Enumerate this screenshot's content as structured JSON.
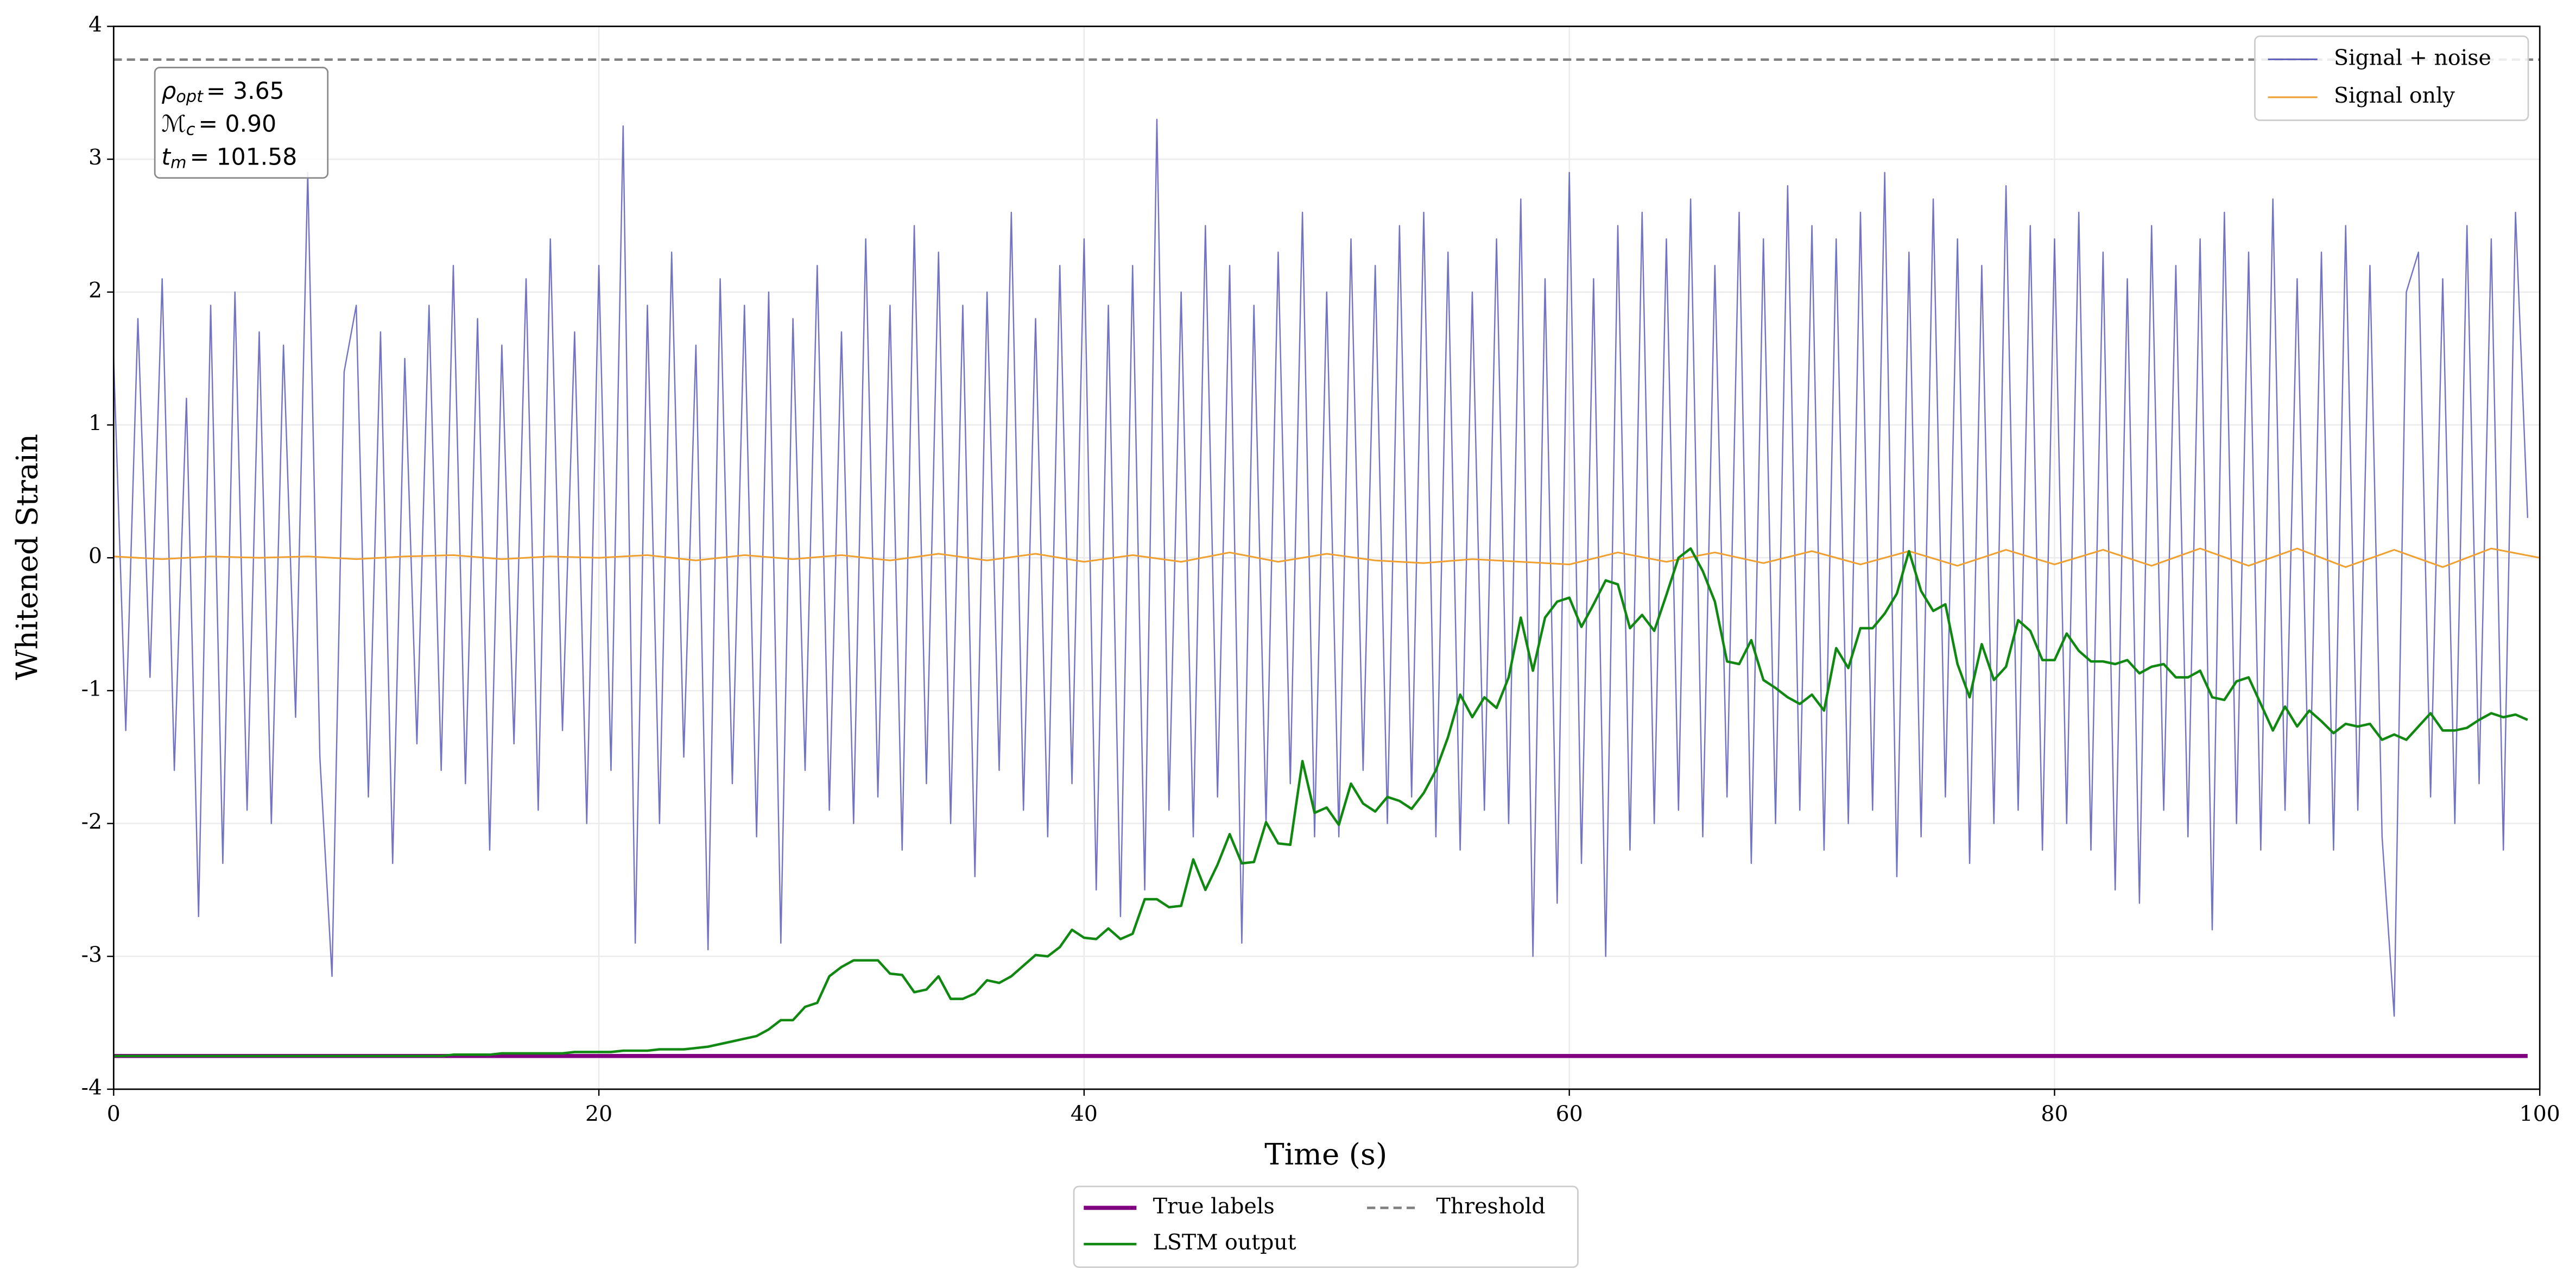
{
  "chart_data": {
    "type": "line",
    "xlabel": "Time (s)",
    "ylabel": "Whitened Strain",
    "xlim": [
      0,
      100
    ],
    "ylim": [
      -4,
      4
    ],
    "xticks": [
      0,
      20,
      40,
      60,
      80,
      100
    ],
    "yticks": [
      -4,
      -3,
      -2,
      -1,
      0,
      1,
      2,
      3,
      4
    ],
    "grid": true,
    "annotations": [
      {
        "symbol": "ρ",
        "sub": "opt",
        "text": "= 3.65"
      },
      {
        "symbol": "ℳ",
        "sub": "c",
        "text": "= 0.90"
      },
      {
        "symbol": "t",
        "sub": "m",
        "text": "= 101.58"
      }
    ],
    "x": [
      0,
      0.5,
      1,
      1.5,
      2,
      2.5,
      3,
      3.5,
      4,
      4.5,
      5,
      5.5,
      6,
      6.5,
      7,
      7.5,
      8,
      8.5,
      9,
      9.5,
      10,
      10.5,
      11,
      11.5,
      12,
      12.5,
      13,
      13.5,
      14,
      14.5,
      15,
      15.5,
      16,
      16.5,
      17,
      17.5,
      18,
      18.5,
      19,
      19.5,
      20,
      20.5,
      21,
      21.5,
      22,
      22.5,
      23,
      23.5,
      24,
      24.5,
      25,
      25.5,
      26,
      26.5,
      27,
      27.5,
      28,
      28.5,
      29,
      29.5,
      30,
      30.5,
      31,
      31.5,
      32,
      32.5,
      33,
      33.5,
      34,
      34.5,
      35,
      35.5,
      36,
      36.5,
      37,
      37.5,
      38,
      38.5,
      39,
      39.5,
      40,
      40.5,
      41,
      41.5,
      42,
      42.5,
      43,
      43.5,
      44,
      44.5,
      45,
      45.5,
      46,
      46.5,
      47,
      47.5,
      48,
      48.5,
      49,
      49.5,
      50,
      50.5,
      51,
      51.5,
      52,
      52.5,
      53,
      53.5,
      54,
      54.5,
      55,
      55.5,
      56,
      56.5,
      57,
      57.5,
      58,
      58.5,
      59,
      59.5,
      60,
      60.5,
      61,
      61.5,
      62,
      62.5,
      63,
      63.5,
      64,
      64.5,
      65,
      65.5,
      66,
      66.5,
      67,
      67.5,
      68,
      68.5,
      69,
      69.5,
      70,
      70.5,
      71,
      71.5,
      72,
      72.5,
      73,
      73.5,
      74,
      74.5,
      75,
      75.5,
      76,
      76.5,
      77,
      77.5,
      78,
      78.5,
      79,
      79.5,
      80,
      80.5,
      81,
      81.5,
      82,
      82.5,
      83,
      83.5,
      84,
      84.5,
      85,
      85.5,
      86,
      86.5,
      87,
      87.5,
      88,
      88.5,
      89,
      89.5,
      90,
      90.5,
      91,
      91.5,
      92,
      92.5,
      93,
      93.5,
      94,
      94.5,
      95,
      95.5,
      96,
      96.5,
      97,
      97.5,
      98,
      98.5,
      99,
      99.5
    ],
    "series": [
      {
        "name": "Signal + noise",
        "color": "#5a5ab8",
        "width": 0.8,
        "linestyle": "solid",
        "legend": "upper right",
        "values": [
          1.5,
          -1.3,
          1.8,
          -0.9,
          2.1,
          -1.6,
          1.2,
          -2.7,
          1.9,
          -2.3,
          2.0,
          -1.9,
          1.7,
          -2.0,
          1.6,
          -1.2,
          2.9,
          -1.5,
          -3.15,
          1.4,
          1.9,
          -1.8,
          1.7,
          -2.3,
          1.5,
          -1.4,
          1.9,
          -1.6,
          2.2,
          -1.7,
          1.8,
          -2.2,
          1.6,
          -1.4,
          2.1,
          -1.9,
          2.4,
          -1.3,
          1.7,
          -2.0,
          2.2,
          -1.6,
          3.25,
          -2.9,
          1.9,
          -2.0,
          2.3,
          -1.5,
          1.6,
          -2.95,
          2.1,
          -1.7,
          1.9,
          -2.1,
          2.0,
          -2.9,
          1.8,
          -1.6,
          2.2,
          -1.9,
          1.7,
          -2.0,
          2.4,
          -1.8,
          1.9,
          -2.2,
          2.5,
          -1.7,
          2.3,
          -2.0,
          1.9,
          -2.4,
          2.0,
          -1.6,
          2.6,
          -1.9,
          1.8,
          -2.1,
          2.2,
          -1.7,
          2.4,
          -2.5,
          1.9,
          -2.7,
          2.2,
          -2.5,
          3.3,
          -1.9,
          2.0,
          -2.1,
          2.5,
          -1.8,
          2.2,
          -2.9,
          1.9,
          -2.0,
          2.3,
          -1.7,
          2.6,
          -2.1,
          2.0,
          -2.1,
          2.4,
          -1.6,
          2.2,
          -2.0,
          2.5,
          -1.8,
          2.6,
          -2.1,
          2.3,
          -2.2,
          2.0,
          -1.9,
          2.4,
          -2.0,
          2.7,
          -3.0,
          2.1,
          -2.6,
          2.9,
          -2.3,
          2.1,
          -3.0,
          2.5,
          -2.2,
          2.6,
          -2.0,
          2.4,
          -1.9,
          2.7,
          -2.1,
          2.2,
          -1.8,
          2.6,
          -2.3,
          2.4,
          -2.0,
          2.8,
          -1.9,
          2.5,
          -2.2,
          2.4,
          -2.0,
          2.6,
          -1.9,
          2.9,
          -2.4,
          2.3,
          -2.1,
          2.7,
          -1.8,
          2.4,
          -2.3,
          2.2,
          -2.0,
          2.8,
          -1.9,
          2.5,
          -2.2,
          2.4,
          -2.0,
          2.6,
          -2.2,
          2.3,
          -2.5,
          2.1,
          -2.6,
          2.5,
          -1.9,
          2.2,
          -2.1,
          2.4,
          -2.8,
          2.6,
          -2.0,
          2.3,
          -2.2,
          2.7,
          -1.9,
          2.1,
          -2.0,
          2.3,
          -2.2,
          2.5,
          -1.9,
          2.2,
          -2.1,
          -3.45,
          2.0,
          2.3,
          -1.8,
          2.1,
          -2.0,
          2.5,
          -1.7,
          2.4,
          -2.2,
          2.6,
          0.3
        ]
      },
      {
        "name": "Signal only",
        "color": "#f0a030",
        "width": 1,
        "linestyle": "solid",
        "legend": "upper right",
        "x": [
          0,
          2,
          4,
          6,
          8,
          10,
          12,
          14,
          16,
          18,
          20,
          22,
          24,
          26,
          28,
          30,
          32,
          34,
          36,
          38,
          40,
          42,
          44,
          46,
          48,
          50,
          52,
          54,
          56,
          58,
          60,
          62,
          64,
          66,
          68,
          70,
          72,
          74,
          76,
          78,
          80,
          82,
          84,
          86,
          88,
          90,
          92,
          94,
          96,
          98,
          100
        ],
        "values": [
          0.01,
          -0.01,
          0.01,
          0,
          0.01,
          -0.01,
          0.01,
          0.02,
          -0.01,
          0.01,
          0,
          0.02,
          -0.02,
          0.02,
          -0.01,
          0.02,
          -0.02,
          0.03,
          -0.02,
          0.03,
          -0.03,
          0.02,
          -0.03,
          0.04,
          -0.03,
          0.03,
          -0.02,
          -0.04,
          -0.01,
          -0.03,
          -0.05,
          0.04,
          -0.03,
          0.04,
          -0.04,
          0.05,
          -0.05,
          0.05,
          -0.06,
          0.06,
          -0.05,
          0.06,
          -0.06,
          0.07,
          -0.06,
          0.07,
          -0.07,
          0.06,
          -0.07,
          0.07,
          0.0
        ]
      },
      {
        "name": "True labels",
        "color": "#800080",
        "width": 2.5,
        "linestyle": "solid",
        "legend": "below",
        "x": [
          0,
          99.5
        ],
        "values": [
          -3.75,
          -3.75
        ]
      },
      {
        "name": "LSTM output",
        "color": "#118811",
        "width": 1.5,
        "linestyle": "solid",
        "legend": "below",
        "values": [
          -3.75,
          -3.75,
          -3.75,
          -3.75,
          -3.75,
          -3.75,
          -3.75,
          -3.75,
          -3.75,
          -3.75,
          -3.75,
          -3.75,
          -3.75,
          -3.75,
          -3.75,
          -3.75,
          -3.75,
          -3.75,
          -3.75,
          -3.75,
          -3.75,
          -3.75,
          -3.75,
          -3.75,
          -3.75,
          -3.75,
          -3.75,
          -3.75,
          -3.74,
          -3.74,
          -3.74,
          -3.74,
          -3.73,
          -3.73,
          -3.73,
          -3.73,
          -3.73,
          -3.73,
          -3.72,
          -3.72,
          -3.72,
          -3.72,
          -3.71,
          -3.71,
          -3.71,
          -3.7,
          -3.7,
          -3.7,
          -3.69,
          -3.68,
          -3.66,
          -3.64,
          -3.62,
          -3.6,
          -3.55,
          -3.48,
          -3.48,
          -3.38,
          -3.35,
          -3.15,
          -3.08,
          -3.03,
          -3.03,
          -3.03,
          -3.13,
          -3.14,
          -3.27,
          -3.25,
          -3.15,
          -3.32,
          -3.32,
          -3.28,
          -3.18,
          -3.2,
          -3.15,
          -3.07,
          -2.99,
          -3.0,
          -2.93,
          -2.8,
          -2.86,
          -2.87,
          -2.79,
          -2.87,
          -2.83,
          -2.57,
          -2.57,
          -2.63,
          -2.62,
          -2.27,
          -2.5,
          -2.31,
          -2.08,
          -2.3,
          -2.29,
          -1.99,
          -2.15,
          -2.16,
          -1.53,
          -1.92,
          -1.88,
          -2.01,
          -1.7,
          -1.85,
          -1.91,
          -1.8,
          -1.83,
          -1.89,
          -1.77,
          -1.6,
          -1.35,
          -1.03,
          -1.2,
          -1.05,
          -1.13,
          -0.9,
          -0.45,
          -0.85,
          -0.45,
          -0.33,
          -0.3,
          -0.52,
          -0.35,
          -0.17,
          -0.2,
          -0.53,
          -0.43,
          -0.55,
          -0.28,
          0.0,
          0.07,
          -0.1,
          -0.33,
          -0.78,
          -0.8,
          -0.62,
          -0.92,
          -0.98,
          -1.05,
          -1.1,
          -1.03,
          -1.15,
          -0.68,
          -0.83,
          -0.53,
          -0.53,
          -0.42,
          -0.27,
          0.05,
          -0.25,
          -0.4,
          -0.35,
          -0.8,
          -1.05,
          -0.65,
          -0.92,
          -0.82,
          -0.47,
          -0.55,
          -0.77,
          -0.77,
          -0.57,
          -0.7,
          -0.78,
          -0.78,
          -0.8,
          -0.77,
          -0.87,
          -0.82,
          -0.8,
          -0.9,
          -0.9,
          -0.85,
          -1.05,
          -1.07,
          -0.93,
          -0.9,
          -1.1,
          -1.3,
          -1.12,
          -1.27,
          -1.15,
          -1.23,
          -1.32,
          -1.25,
          -1.27,
          -1.25,
          -1.37,
          -1.33,
          -1.37,
          -1.27,
          -1.17,
          -1.3,
          -1.3,
          -1.28,
          -1.22,
          -1.17,
          -1.2,
          -1.18,
          -1.22
        ]
      },
      {
        "name": "Threshold",
        "color": "#808080",
        "width": 1.5,
        "linestyle": "dashed",
        "legend": "below",
        "x": [
          0,
          100
        ],
        "values": [
          3.75,
          3.75
        ]
      }
    ]
  }
}
